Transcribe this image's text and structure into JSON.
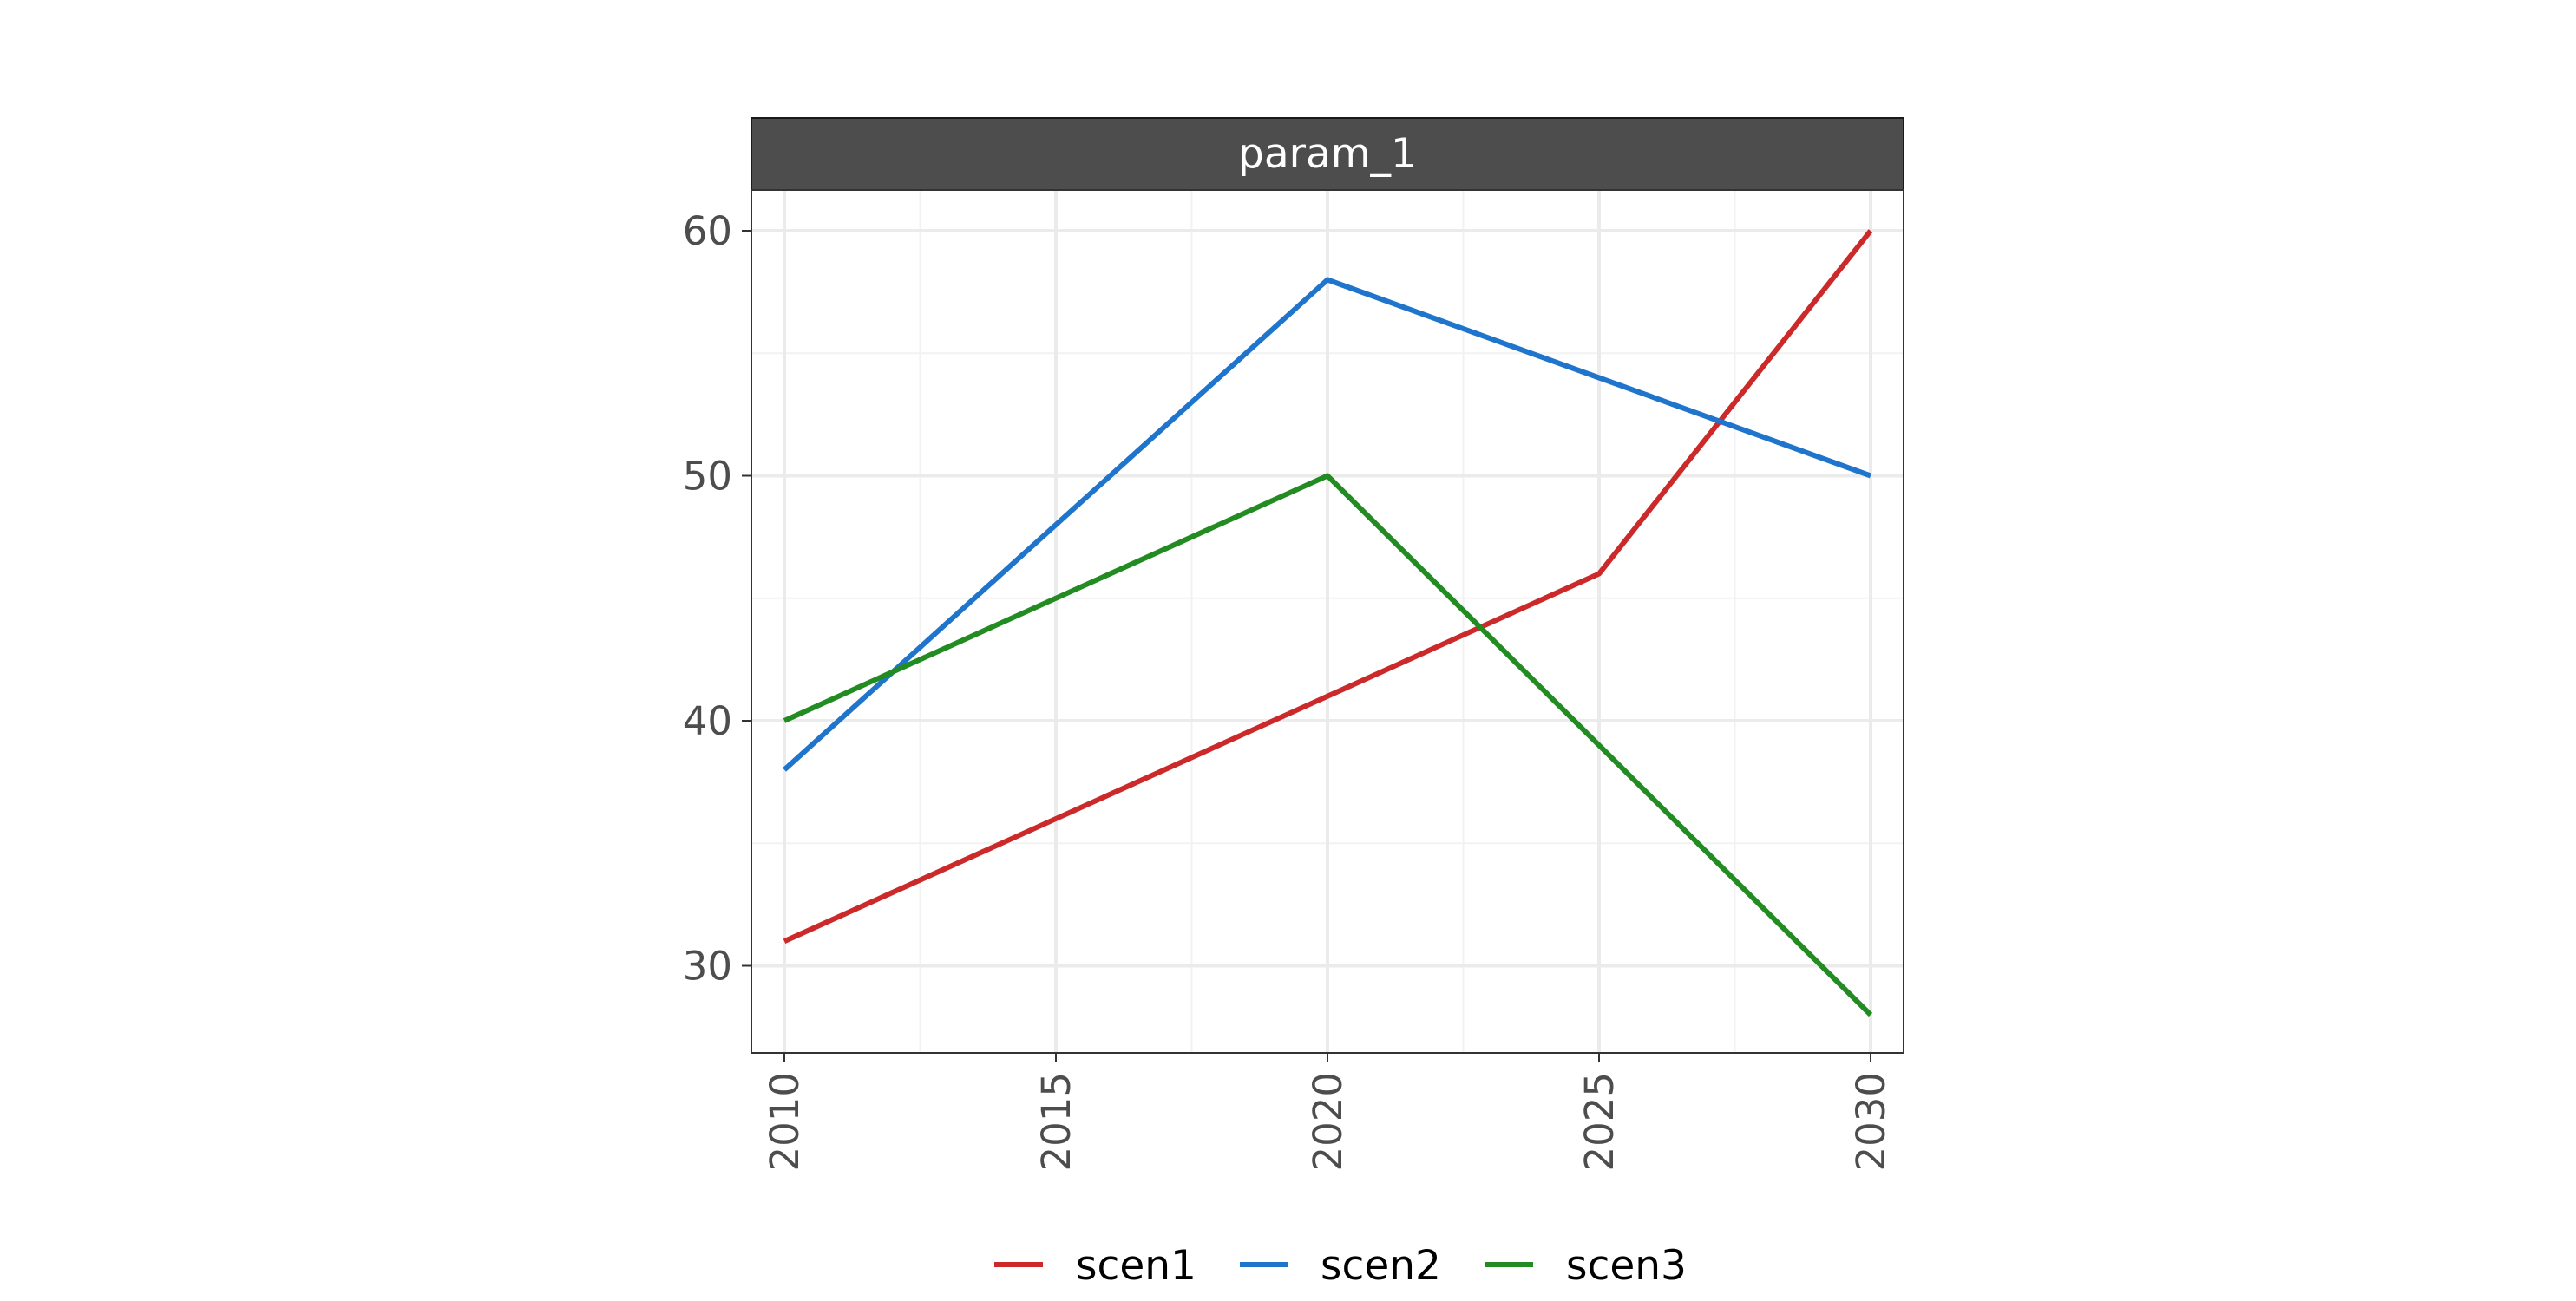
{
  "chart_data": {
    "type": "line",
    "facet_label": "param_1",
    "x": [
      2010,
      2020,
      2025,
      2030
    ],
    "x_ticks": [
      2010,
      2015,
      2020,
      2025,
      2030
    ],
    "y_ticks": [
      30,
      40,
      50,
      60
    ],
    "xlim": [
      2010,
      2030
    ],
    "ylim": [
      28,
      60
    ],
    "grid": true,
    "legend_position": "bottom",
    "series": [
      {
        "name": "scen1",
        "color": "#cc2a2a",
        "values": [
          31,
          41,
          46,
          60
        ]
      },
      {
        "name": "scen2",
        "color": "#1f74cc",
        "values": [
          38,
          58,
          54,
          50
        ]
      },
      {
        "name": "scen3",
        "color": "#228b22",
        "values": [
          40,
          50,
          39,
          28
        ]
      }
    ]
  }
}
